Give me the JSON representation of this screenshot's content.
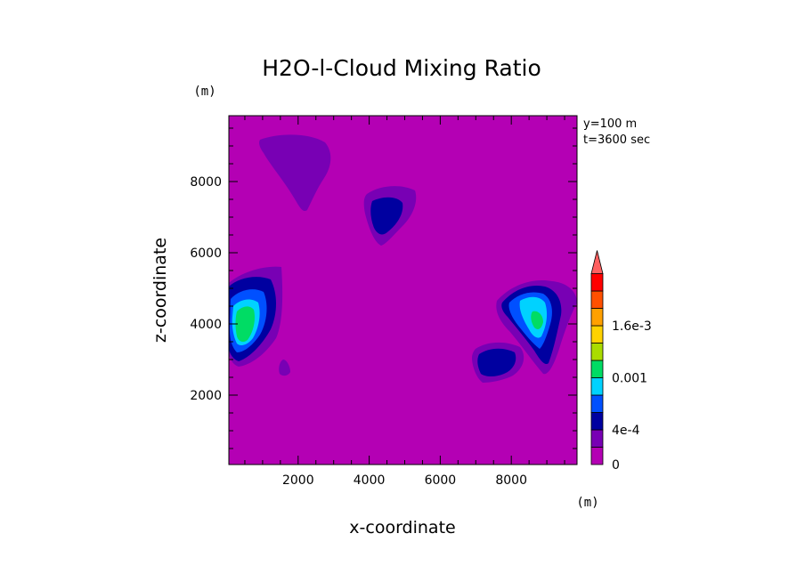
{
  "chart_data": {
    "type": "heatmap",
    "title": "H2O-l-Cloud Mixing Ratio",
    "xlabel": "x-coordinate",
    "ylabel": "z-coordinate",
    "x_unit": "(m)",
    "y_unit": "(m)",
    "xlim": [
      50,
      9850
    ],
    "ylim": [
      50,
      9850
    ],
    "x_ticks": [
      2000,
      4000,
      6000,
      8000
    ],
    "y_ticks": [
      2000,
      4000,
      6000,
      8000
    ],
    "annotations": [
      "y=100 m",
      "t=3600 sec"
    ],
    "colorbar": {
      "levels": [
        0,
        0.0002,
        0.0004,
        0.0006,
        0.0008,
        0.001,
        0.0012,
        0.0014,
        0.0016,
        0.0018,
        0.002
      ],
      "colors": [
        "#b400b4",
        "#7800b4",
        "#0000a0",
        "#0050ff",
        "#00d2ff",
        "#00dc64",
        "#aadc00",
        "#ffd200",
        "#ffa000",
        "#ff5000",
        "#ff0000",
        "#ff6060"
      ],
      "tick_labels": [
        {
          "value": 0,
          "label": "0"
        },
        {
          "value": 0.0004,
          "label": "4e-4"
        },
        {
          "value": 0.001,
          "label": "0.001"
        },
        {
          "value": 0.0016,
          "label": "1.6e-3"
        }
      ]
    },
    "features": [
      {
        "name": "upper-left-plume",
        "x": [
          1000,
          2100,
          2800
        ],
        "z": [
          9300,
          9200,
          7400
        ],
        "max_level": 1
      },
      {
        "name": "left-cloud",
        "x": [
          200,
          900,
          1400
        ],
        "z": [
          3000,
          4300,
          5600
        ],
        "max_level": 5
      },
      {
        "name": "central-cloud",
        "x": [
          4100,
          4500,
          4900
        ],
        "z": [
          6300,
          7100,
          7800
        ],
        "max_level": 2
      },
      {
        "name": "right-cloud",
        "x": [
          7800,
          8700,
          9400
        ],
        "z": [
          3000,
          4200,
          5100
        ],
        "max_level": 5
      },
      {
        "name": "lower-right-cloud",
        "x": [
          7200,
          7700,
          8100
        ],
        "z": [
          2500,
          2900,
          3300
        ],
        "max_level": 2
      },
      {
        "name": "small-left-spot",
        "x": [
          1650,
          1750,
          1850
        ],
        "z": [
          2650,
          2800,
          2950
        ],
        "max_level": 1
      }
    ]
  }
}
